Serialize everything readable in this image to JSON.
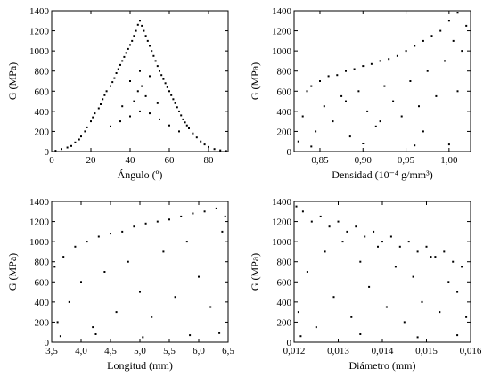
{
  "figure": {
    "style": {
      "point_color": "#000000",
      "background": "#ffffff"
    }
  },
  "chart_data": [
    {
      "id": "g-vs-angle",
      "type": "scatter",
      "xlabel": "Ángulo (º)",
      "ylabel": "G (MPa)",
      "xlim": [
        0,
        90
      ],
      "ylim": [
        0,
        1400
      ],
      "xticks": [
        0,
        20,
        40,
        60,
        80
      ],
      "xtick_labels": [
        "0",
        "20",
        "40",
        "60",
        "80"
      ],
      "yticks": [
        0,
        200,
        400,
        600,
        800,
        1000,
        1200,
        1400
      ],
      "ytick_labels": [
        "0",
        "200",
        "400",
        "600",
        "800",
        "1000",
        "1200",
        "1400"
      ],
      "grid": false,
      "series": [
        {
          "values": [
            [
              2,
              8
            ],
            [
              5,
              25
            ],
            [
              8,
              40
            ],
            [
              10,
              55
            ],
            [
              12,
              90
            ],
            [
              14,
              120
            ],
            [
              15,
              150
            ],
            [
              17,
              200
            ],
            [
              18,
              240
            ],
            [
              20,
              300
            ],
            [
              21,
              340
            ],
            [
              22,
              380
            ],
            [
              24,
              430
            ],
            [
              25,
              470
            ],
            [
              26,
              520
            ],
            [
              27,
              560
            ],
            [
              28,
              600
            ],
            [
              30,
              650
            ],
            [
              31,
              690
            ],
            [
              32,
              730
            ],
            [
              33,
              780
            ],
            [
              34,
              820
            ],
            [
              35,
              860
            ],
            [
              36,
              900
            ],
            [
              37,
              940
            ],
            [
              38,
              980
            ],
            [
              39,
              1020
            ],
            [
              40,
              1060
            ],
            [
              41,
              1100
            ],
            [
              42,
              1150
            ],
            [
              43,
              1200
            ],
            [
              44,
              1260
            ],
            [
              45,
              1300
            ],
            [
              46,
              1250
            ],
            [
              47,
              1200
            ],
            [
              48,
              1150
            ],
            [
              49,
              1100
            ],
            [
              50,
              1050
            ],
            [
              51,
              1000
            ],
            [
              52,
              950
            ],
            [
              53,
              900
            ],
            [
              54,
              850
            ],
            [
              55,
              800
            ],
            [
              56,
              760
            ],
            [
              57,
              720
            ],
            [
              58,
              680
            ],
            [
              59,
              640
            ],
            [
              60,
              600
            ],
            [
              61,
              560
            ],
            [
              62,
              520
            ],
            [
              63,
              480
            ],
            [
              64,
              440
            ],
            [
              65,
              400
            ],
            [
              66,
              360
            ],
            [
              67,
              320
            ],
            [
              68,
              290
            ],
            [
              69,
              260
            ],
            [
              70,
              230
            ],
            [
              72,
              180
            ],
            [
              74,
              140
            ],
            [
              76,
              100
            ],
            [
              78,
              70
            ],
            [
              80,
              45
            ],
            [
              83,
              25
            ],
            [
              86,
              12
            ],
            [
              89,
              5
            ],
            [
              30,
              250
            ],
            [
              35,
              300
            ],
            [
              40,
              350
            ],
            [
              45,
              400
            ],
            [
              50,
              380
            ],
            [
              55,
              320
            ],
            [
              60,
              260
            ],
            [
              65,
              200
            ],
            [
              40,
              700
            ],
            [
              45,
              800
            ],
            [
              50,
              750
            ],
            [
              44,
              600
            ],
            [
              46,
              650
            ],
            [
              42,
              500
            ],
            [
              48,
              550
            ],
            [
              36,
              450
            ],
            [
              54,
              480
            ]
          ]
        }
      ]
    },
    {
      "id": "g-vs-density",
      "type": "scatter",
      "xlabel": "Densidad (10⁻⁴ g/mm³)",
      "ylabel": "G (MPa)",
      "xlim": [
        0.82,
        1.025
      ],
      "ylim": [
        0,
        1400
      ],
      "xticks": [
        0.85,
        0.9,
        0.95,
        1.0
      ],
      "xtick_labels": [
        "0,85",
        "0,90",
        "0,95",
        "1,00"
      ],
      "yticks": [
        0,
        200,
        400,
        600,
        800,
        1000,
        1200,
        1400
      ],
      "ytick_labels": [
        "0",
        "200",
        "400",
        "600",
        "800",
        "1000",
        "1200",
        "1400"
      ],
      "grid": false,
      "series": [
        {
          "values": [
            [
              0.825,
              100
            ],
            [
              0.83,
              350
            ],
            [
              0.835,
              600
            ],
            [
              0.84,
              650
            ],
            [
              0.845,
              200
            ],
            [
              0.85,
              700
            ],
            [
              0.855,
              450
            ],
            [
              0.86,
              750
            ],
            [
              0.865,
              300
            ],
            [
              0.87,
              760
            ],
            [
              0.875,
              550
            ],
            [
              0.88,
              800
            ],
            [
              0.885,
              150
            ],
            [
              0.89,
              820
            ],
            [
              0.895,
              600
            ],
            [
              0.9,
              850
            ],
            [
              0.905,
              400
            ],
            [
              0.91,
              870
            ],
            [
              0.915,
              250
            ],
            [
              0.92,
              900
            ],
            [
              0.925,
              650
            ],
            [
              0.93,
              920
            ],
            [
              0.935,
              500
            ],
            [
              0.94,
              950
            ],
            [
              0.945,
              350
            ],
            [
              0.95,
              1000
            ],
            [
              0.955,
              700
            ],
            [
              0.96,
              1050
            ],
            [
              0.965,
              450
            ],
            [
              0.97,
              1100
            ],
            [
              0.975,
              800
            ],
            [
              0.98,
              1150
            ],
            [
              0.985,
              550
            ],
            [
              0.99,
              1200
            ],
            [
              0.995,
              900
            ],
            [
              1.0,
              1300
            ],
            [
              1.005,
              1100
            ],
            [
              1.01,
              1380
            ],
            [
              1.015,
              1000
            ],
            [
              1.02,
              1250
            ],
            [
              0.84,
              50
            ],
            [
              0.9,
              80
            ],
            [
              0.96,
              60
            ],
            [
              1.0,
              70
            ],
            [
              0.88,
              500
            ],
            [
              0.92,
              300
            ],
            [
              0.97,
              200
            ],
            [
              1.01,
              600
            ]
          ]
        }
      ]
    },
    {
      "id": "g-vs-length",
      "type": "scatter",
      "xlabel": "Longitud (mm)",
      "ylabel": "G (MPa)",
      "xlim": [
        3.5,
        6.5
      ],
      "ylim": [
        0,
        1400
      ],
      "xticks": [
        3.5,
        4.0,
        4.5,
        5.0,
        5.5,
        6.0,
        6.5
      ],
      "xtick_labels": [
        "3,5",
        "4,0",
        "4,5",
        "5,0",
        "5,5",
        "6,0",
        "6,5"
      ],
      "yticks": [
        0,
        200,
        400,
        600,
        800,
        1000,
        1200,
        1400
      ],
      "ytick_labels": [
        "0",
        "200",
        "400",
        "600",
        "800",
        "1000",
        "1200",
        "1400"
      ],
      "grid": false,
      "series": [
        {
          "values": [
            [
              3.55,
              750
            ],
            [
              3.6,
              200
            ],
            [
              3.7,
              850
            ],
            [
              3.8,
              400
            ],
            [
              3.9,
              950
            ],
            [
              4.0,
              600
            ],
            [
              4.1,
              1000
            ],
            [
              4.2,
              150
            ],
            [
              4.3,
              1050
            ],
            [
              4.4,
              700
            ],
            [
              4.5,
              1080
            ],
            [
              4.6,
              300
            ],
            [
              4.7,
              1100
            ],
            [
              4.8,
              800
            ],
            [
              4.9,
              1150
            ],
            [
              5.0,
              500
            ],
            [
              5.1,
              1180
            ],
            [
              5.2,
              250
            ],
            [
              5.3,
              1200
            ],
            [
              5.4,
              900
            ],
            [
              5.5,
              1220
            ],
            [
              5.6,
              450
            ],
            [
              5.7,
              1250
            ],
            [
              5.8,
              1000
            ],
            [
              5.9,
              1280
            ],
            [
              6.0,
              650
            ],
            [
              6.1,
              1300
            ],
            [
              6.2,
              350
            ],
            [
              6.3,
              1330
            ],
            [
              6.4,
              1100
            ],
            [
              6.45,
              1250
            ],
            [
              3.65,
              60
            ],
            [
              4.25,
              80
            ],
            [
              5.05,
              50
            ],
            [
              5.85,
              70
            ],
            [
              6.35,
              90
            ]
          ]
        }
      ]
    },
    {
      "id": "g-vs-diameter",
      "type": "scatter",
      "xlabel": "Diámetro (mm)",
      "ylabel": "G (MPa)",
      "xlim": [
        0.012,
        0.016
      ],
      "ylim": [
        0,
        1400
      ],
      "xticks": [
        0.012,
        0.013,
        0.014,
        0.015,
        0.016
      ],
      "xtick_labels": [
        "0,012",
        "0,013",
        "0,014",
        "0,015",
        "0,016"
      ],
      "yticks": [
        0,
        200,
        400,
        600,
        800,
        1000,
        1200,
        1400
      ],
      "ytick_labels": [
        "0",
        "200",
        "400",
        "600",
        "800",
        "1000",
        "1200",
        "1400"
      ],
      "grid": false,
      "series": [
        {
          "values": [
            [
              0.01205,
              1350
            ],
            [
              0.0121,
              300
            ],
            [
              0.0122,
              1300
            ],
            [
              0.0123,
              700
            ],
            [
              0.0124,
              1200
            ],
            [
              0.0125,
              150
            ],
            [
              0.0126,
              1250
            ],
            [
              0.0127,
              900
            ],
            [
              0.0128,
              1150
            ],
            [
              0.0129,
              450
            ],
            [
              0.013,
              1200
            ],
            [
              0.0131,
              1000
            ],
            [
              0.0132,
              1100
            ],
            [
              0.0133,
              250
            ],
            [
              0.0134,
              1150
            ],
            [
              0.0135,
              800
            ],
            [
              0.0136,
              1050
            ],
            [
              0.0137,
              550
            ],
            [
              0.0138,
              1100
            ],
            [
              0.0139,
              950
            ],
            [
              0.014,
              1000
            ],
            [
              0.0141,
              350
            ],
            [
              0.0142,
              1050
            ],
            [
              0.0143,
              750
            ],
            [
              0.0144,
              950
            ],
            [
              0.0145,
              200
            ],
            [
              0.0146,
              1000
            ],
            [
              0.0147,
              650
            ],
            [
              0.0148,
              900
            ],
            [
              0.0149,
              400
            ],
            [
              0.015,
              950
            ],
            [
              0.0151,
              850
            ],
            [
              0.0152,
              850
            ],
            [
              0.0153,
              300
            ],
            [
              0.0154,
              900
            ],
            [
              0.0155,
              600
            ],
            [
              0.0156,
              800
            ],
            [
              0.0157,
              500
            ],
            [
              0.0158,
              750
            ],
            [
              0.0159,
              250
            ],
            [
              0.01215,
              60
            ],
            [
              0.0135,
              80
            ],
            [
              0.0148,
              50
            ],
            [
              0.0157,
              70
            ]
          ]
        }
      ]
    }
  ]
}
